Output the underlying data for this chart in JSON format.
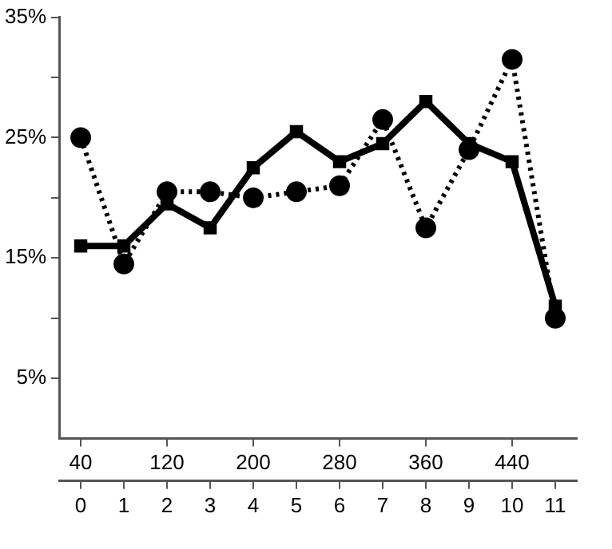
{
  "chart_data": {
    "type": "line",
    "x": [
      40,
      80,
      120,
      160,
      200,
      240,
      280,
      320,
      360,
      400,
      440,
      480
    ],
    "xlim": [
      20,
      500
    ],
    "xticks": [
      40,
      120,
      200,
      280,
      360,
      440
    ],
    "x2lim": [
      -0.5,
      11.5
    ],
    "x2ticks": [
      0,
      1,
      2,
      3,
      4,
      5,
      6,
      7,
      8,
      9,
      10,
      11
    ],
    "ylim": [
      0,
      35
    ],
    "yticks": [
      {
        "value": 5,
        "label": "5%"
      },
      {
        "value": 10,
        "label": null
      },
      {
        "value": 15,
        "label": "15%"
      },
      {
        "value": 20,
        "label": null
      },
      {
        "value": 25,
        "label": "25%"
      },
      {
        "value": 30,
        "label": null
      },
      {
        "value": 35,
        "label": "35%"
      }
    ],
    "series": [
      {
        "color": "#000000",
        "marker": "square",
        "line_style": "solid",
        "values": [
          16,
          16,
          19.5,
          17.5,
          22.5,
          25.5,
          23,
          24.5,
          28,
          24.5,
          23,
          11
        ]
      },
      {
        "color": "#000000",
        "marker": "circle",
        "line_style": "dotted",
        "values": [
          25,
          14.5,
          20.5,
          20.5,
          20,
          20.5,
          21,
          26.5,
          17.5,
          24,
          31.5,
          10
        ]
      }
    ],
    "grid": false,
    "legend": false
  }
}
